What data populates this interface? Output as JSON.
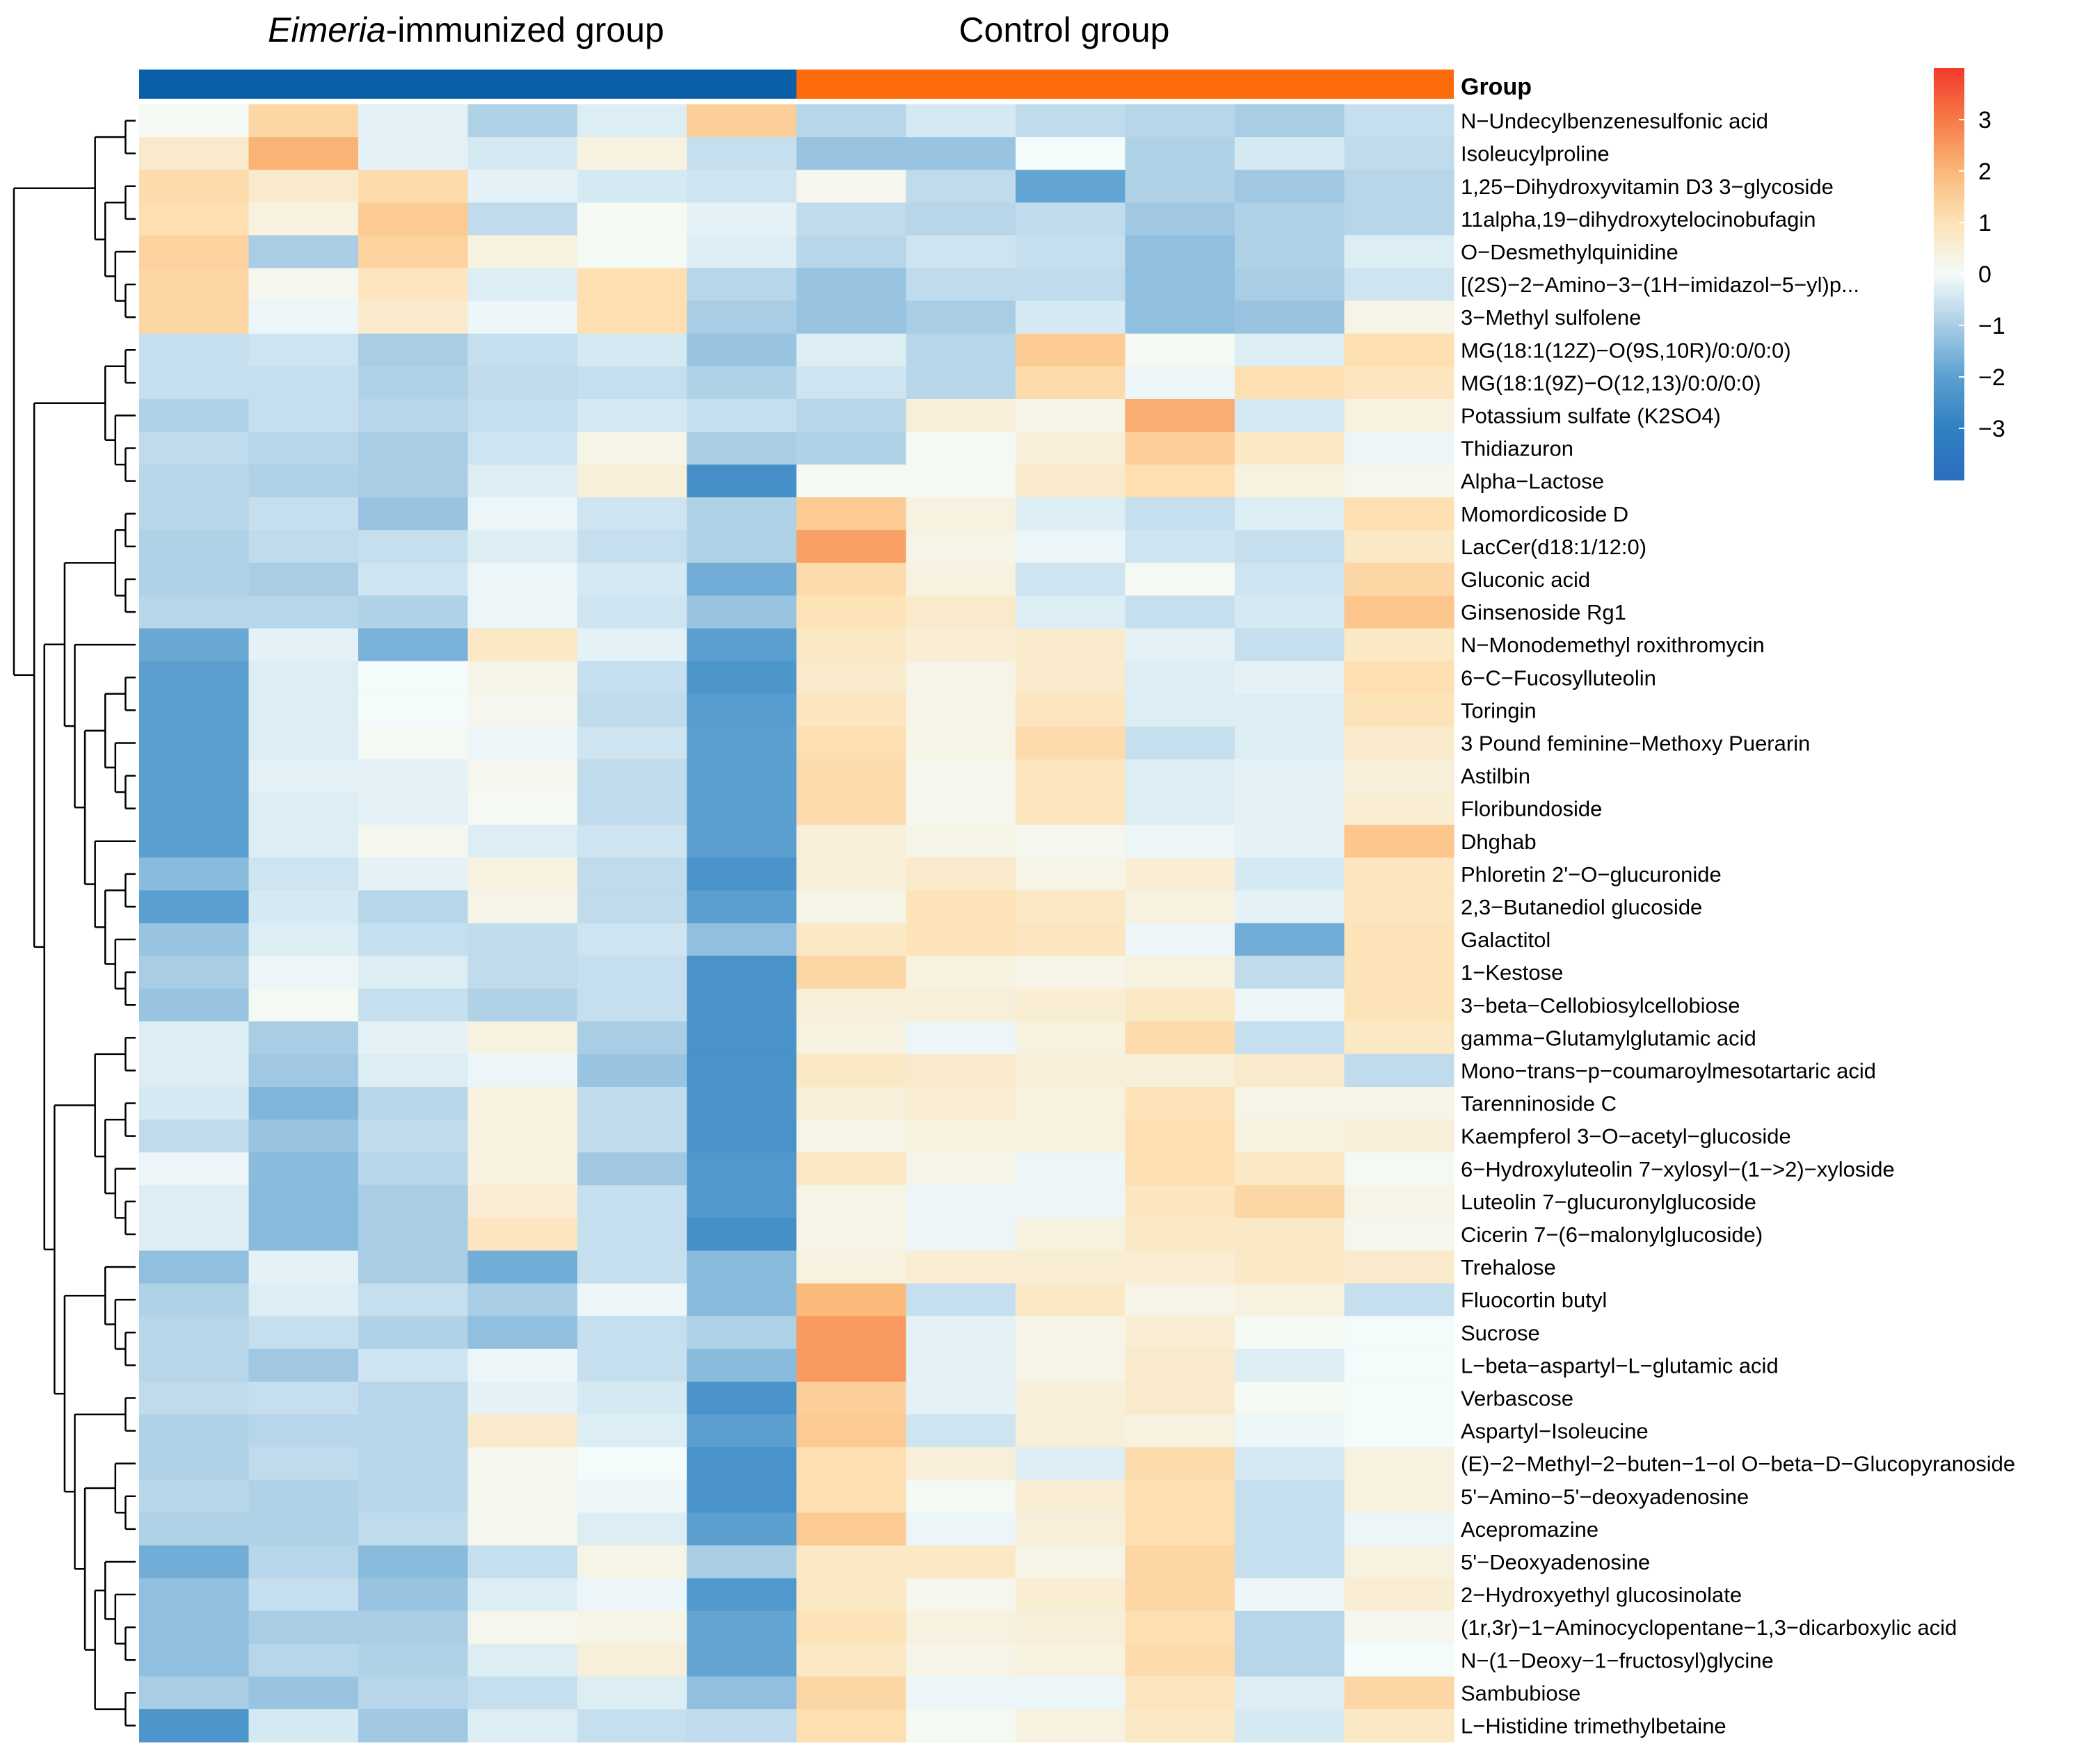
{
  "chart_data": {
    "type": "heatmap",
    "group_labels": [
      "Eimeria",
      "-immunized group",
      "Control group"
    ],
    "group_legend_label": "Group",
    "group_colors": [
      "#0a5fa8",
      "#fd6a0b"
    ],
    "columns_per_group": 6,
    "colorbar": {
      "min": -4,
      "max": 4,
      "ticks": [
        "3",
        "2",
        "1",
        "0",
        "−1",
        "−2",
        "−3"
      ],
      "tick_values": [
        3,
        2,
        1,
        0,
        -1,
        -2,
        -3
      ]
    },
    "rows": [
      {
        "label": "N−Undecylbenzenesulfonic acid",
        "values": [
          0.1,
          1.3,
          -0.2,
          -0.9,
          -0.3,
          1.5,
          -0.8,
          -0.4,
          -0.7,
          -0.8,
          -1.0,
          -0.6
        ]
      },
      {
        "label": "Isoleucylproline",
        "values": [
          0.7,
          2.1,
          -0.2,
          -0.4,
          0.4,
          -0.6,
          -1.2,
          -1.2,
          0.0,
          -0.9,
          -0.4,
          -0.7
        ]
      },
      {
        "label": "1,25−Dihydroxyvitamin D3 3−glycoside",
        "values": [
          1.2,
          0.7,
          1.2,
          -0.2,
          -0.4,
          -0.5,
          0.2,
          -0.7,
          -1.9,
          -0.9,
          -1.1,
          -0.8
        ]
      },
      {
        "label": "11alpha,19−dihydroxytelocinobufagin",
        "values": [
          1.1,
          0.4,
          1.6,
          -0.7,
          0.1,
          -0.2,
          -0.7,
          -0.8,
          -0.7,
          -1.1,
          -0.9,
          -0.8
        ]
      },
      {
        "label": "O−Desmethylquinidine",
        "values": [
          1.4,
          -1.0,
          1.4,
          0.4,
          0.1,
          -0.3,
          -0.8,
          -0.5,
          -0.6,
          -1.3,
          -0.9,
          -0.3
        ]
      },
      {
        "label": "[(2S)−2−Amino−3−(1H−imidazol−5−yl)p...",
        "values": [
          1.3,
          0.2,
          0.9,
          -0.3,
          1.1,
          -0.8,
          -1.2,
          -0.7,
          -0.7,
          -1.3,
          -1.0,
          -0.5
        ]
      },
      {
        "label": "3−Methyl sulfolene",
        "values": [
          1.3,
          -0.1,
          0.7,
          -0.1,
          1.1,
          -1.0,
          -1.2,
          -1.0,
          -0.4,
          -1.3,
          -1.2,
          0.3
        ]
      },
      {
        "label": "MG(18:1(12Z)−O(9S,10R)/0:0/0:0)",
        "values": [
          -0.6,
          -0.5,
          -1.0,
          -0.6,
          -0.4,
          -1.2,
          -0.3,
          -0.8,
          1.6,
          0.1,
          -0.3,
          1.1
        ]
      },
      {
        "label": "MG(18:1(9Z)−O(12,13)/0:0/0:0)",
        "values": [
          -0.6,
          -0.6,
          -0.9,
          -0.7,
          -0.6,
          -0.9,
          -0.5,
          -0.8,
          1.2,
          -0.1,
          1.1,
          0.9
        ]
      },
      {
        "label": "Potassium sulfate (K2SO4)",
        "values": [
          -0.9,
          -0.6,
          -0.8,
          -0.6,
          -0.4,
          -0.6,
          -0.8,
          0.5,
          0.3,
          2.2,
          -0.4,
          0.4
        ]
      },
      {
        "label": "Thidiazuron",
        "values": [
          -0.7,
          -0.8,
          -1.0,
          -0.5,
          0.3,
          -1.0,
          -0.9,
          0.1,
          0.5,
          1.5,
          0.8,
          -0.1
        ]
      },
      {
        "label": "Alpha−Lactose",
        "values": [
          -0.8,
          -0.9,
          -1.0,
          -0.3,
          0.5,
          -2.5,
          0.1,
          0.1,
          0.7,
          1.1,
          0.4,
          0.2
        ]
      },
      {
        "label": "Momordicoside D",
        "values": [
          -0.8,
          -0.6,
          -1.2,
          -0.1,
          -0.5,
          -0.9,
          1.6,
          0.4,
          -0.3,
          -0.6,
          -0.3,
          1.1
        ]
      },
      {
        "label": "LacCer(d18:1/12:0)",
        "values": [
          -0.9,
          -0.7,
          -0.6,
          -0.3,
          -0.6,
          -0.9,
          2.4,
          0.3,
          -0.1,
          -0.5,
          -0.6,
          0.8
        ]
      },
      {
        "label": "Gluconic acid",
        "values": [
          -0.9,
          -1.0,
          -0.5,
          -0.1,
          -0.4,
          -1.7,
          1.2,
          0.4,
          -0.5,
          0.1,
          -0.5,
          1.3
        ]
      },
      {
        "label": "Ginsenoside Rg1",
        "values": [
          -0.8,
          -0.8,
          -0.9,
          -0.1,
          -0.5,
          -1.2,
          1.0,
          0.7,
          -0.3,
          -0.6,
          -0.4,
          1.7
        ]
      },
      {
        "label": "N−Monodemethyl roxithromycin",
        "values": [
          -1.8,
          -0.2,
          -1.6,
          0.8,
          -0.2,
          -2.0,
          0.8,
          0.6,
          0.7,
          -0.2,
          -0.6,
          0.8
        ]
      },
      {
        "label": "6−C−Fucosylluteolin",
        "values": [
          -2.0,
          -0.3,
          0.0,
          0.3,
          -0.6,
          -2.3,
          0.7,
          0.3,
          0.7,
          -0.3,
          -0.2,
          1.1
        ]
      },
      {
        "label": "Toringin",
        "values": [
          -2.0,
          -0.3,
          0.0,
          0.2,
          -0.7,
          -2.1,
          0.9,
          0.3,
          0.9,
          -0.3,
          -0.3,
          1.0
        ]
      },
      {
        "label": "3 Pound feminine−Methoxy Puerarin",
        "values": [
          -2.0,
          -0.3,
          0.1,
          -0.1,
          -0.5,
          -2.0,
          1.1,
          0.3,
          1.2,
          -0.6,
          -0.3,
          0.7
        ]
      },
      {
        "label": "Astilbin",
        "values": [
          -2.0,
          -0.2,
          -0.2,
          0.2,
          -0.7,
          -2.0,
          1.2,
          0.2,
          0.9,
          -0.3,
          -0.2,
          0.5
        ]
      },
      {
        "label": "Floribundoside",
        "values": [
          -2.0,
          -0.3,
          -0.2,
          0.1,
          -0.7,
          -2.0,
          1.2,
          0.2,
          0.9,
          -0.3,
          -0.2,
          0.6
        ]
      },
      {
        "label": "Dhghab",
        "values": [
          -2.0,
          -0.3,
          0.2,
          -0.3,
          -0.5,
          -2.0,
          0.5,
          0.3,
          0.2,
          -0.1,
          -0.2,
          1.7
        ]
      },
      {
        "label": "Phloretin 2'−O−glucuronide",
        "values": [
          -1.4,
          -0.5,
          -0.2,
          0.4,
          -0.7,
          -2.4,
          0.5,
          0.7,
          0.3,
          0.6,
          -0.4,
          0.9
        ]
      },
      {
        "label": "2,3−Butanediol glucoside",
        "values": [
          -2.0,
          -0.4,
          -0.8,
          0.3,
          -0.7,
          -2.0,
          0.3,
          1.0,
          0.8,
          0.4,
          -0.2,
          0.9
        ]
      },
      {
        "label": "Galactitol",
        "values": [
          -1.2,
          -0.3,
          -0.6,
          -0.7,
          -0.5,
          -1.3,
          0.8,
          1.0,
          0.9,
          -0.1,
          -1.7,
          1.0
        ]
      },
      {
        "label": "1−Kestose",
        "values": [
          -1.0,
          -0.1,
          -0.3,
          -0.7,
          -0.6,
          -2.4,
          1.3,
          0.4,
          0.3,
          0.4,
          -0.7,
          1.0
        ]
      },
      {
        "label": "3−beta−Cellobiosylcellobiose",
        "values": [
          -1.2,
          0.1,
          -0.6,
          -0.9,
          -0.6,
          -2.4,
          0.5,
          0.5,
          0.6,
          0.8,
          -0.1,
          1.0
        ]
      },
      {
        "label": "gamma−Glutamylglutamic acid",
        "values": [
          -0.3,
          -1.0,
          -0.2,
          0.4,
          -1.0,
          -2.4,
          0.4,
          -0.1,
          0.4,
          1.2,
          -0.6,
          0.8
        ]
      },
      {
        "label": "Mono−trans−p−coumaroylmesotartaric acid",
        "values": [
          -0.3,
          -1.1,
          -0.3,
          -0.1,
          -1.2,
          -2.4,
          0.8,
          0.7,
          0.5,
          0.5,
          0.7,
          -0.7
        ]
      },
      {
        "label": "Tarenninoside C",
        "values": [
          -0.4,
          -1.5,
          -0.8,
          0.4,
          -0.7,
          -2.4,
          0.5,
          0.6,
          0.4,
          1.0,
          0.3,
          0.3
        ]
      },
      {
        "label": "Kaempferol 3−O−acetyl−glucoside",
        "values": [
          -0.7,
          -1.2,
          -0.7,
          0.4,
          -0.7,
          -2.4,
          0.3,
          0.4,
          0.4,
          1.1,
          0.4,
          0.5
        ]
      },
      {
        "label": "6−Hydroxyluteolin 7−xylosyl−(1−>2)−xyloside",
        "values": [
          -0.1,
          -1.4,
          -0.8,
          0.4,
          -1.1,
          -2.2,
          0.8,
          0.3,
          -0.1,
          1.1,
          0.8,
          0.1
        ]
      },
      {
        "label": "Luteolin 7−glucuronylglucoside",
        "values": [
          -0.3,
          -1.4,
          -1.0,
          0.6,
          -0.6,
          -2.2,
          0.3,
          -0.1,
          -0.1,
          0.9,
          1.3,
          0.3
        ]
      },
      {
        "label": "Cicerin 7−(6−malonylglucoside)",
        "values": [
          -0.3,
          -1.4,
          -1.0,
          0.9,
          -0.6,
          -2.5,
          0.3,
          -0.1,
          0.4,
          0.8,
          0.8,
          0.2
        ]
      },
      {
        "label": "Trehalose",
        "values": [
          -1.3,
          -0.2,
          -1.0,
          -1.7,
          -0.6,
          -1.4,
          0.4,
          0.6,
          0.6,
          0.6,
          0.8,
          0.7
        ]
      },
      {
        "label": "Fluocortin butyl",
        "values": [
          -0.9,
          -0.3,
          -0.6,
          -1.0,
          -0.1,
          -1.4,
          2.0,
          -0.6,
          0.8,
          0.3,
          0.4,
          -0.6
        ]
      },
      {
        "label": "Sucrose",
        "values": [
          -0.8,
          -0.6,
          -0.9,
          -1.3,
          -0.6,
          -0.9,
          2.5,
          -0.2,
          0.3,
          0.6,
          0.1,
          0.0
        ]
      },
      {
        "label": "L−beta−aspartyl−L−glutamic acid",
        "values": [
          -0.8,
          -1.1,
          -0.5,
          -0.1,
          -0.6,
          -1.4,
          2.5,
          -0.2,
          0.3,
          0.7,
          -0.3,
          0.0
        ]
      },
      {
        "label": "Verbascose",
        "values": [
          -0.7,
          -0.6,
          -0.8,
          -0.2,
          -0.4,
          -2.4,
          1.5,
          -0.2,
          0.5,
          0.7,
          0.1,
          0.0
        ]
      },
      {
        "label": "Aspartyl−Isoleucine",
        "values": [
          -0.9,
          -0.8,
          -0.8,
          0.7,
          -0.3,
          -2.0,
          1.6,
          -0.5,
          0.5,
          0.4,
          -0.1,
          0.0
        ]
      },
      {
        "label": "(E)−2−Methyl−2−buten−1−ol O−beta−D−Glucopyranoside",
        "values": [
          -0.9,
          -0.7,
          -0.8,
          0.2,
          0.0,
          -2.4,
          1.1,
          0.5,
          -0.3,
          1.2,
          -0.4,
          0.4
        ]
      },
      {
        "label": "5'−Amino−5'−deoxyadenosine",
        "values": [
          -0.8,
          -0.9,
          -0.8,
          0.2,
          -0.1,
          -2.4,
          1.1,
          0.1,
          0.6,
          1.1,
          -0.6,
          0.4
        ]
      },
      {
        "label": "Acepromazine",
        "values": [
          -0.9,
          -0.9,
          -0.7,
          0.2,
          -0.3,
          -2.0,
          1.6,
          -0.1,
          0.5,
          1.1,
          -0.6,
          -0.1
        ]
      },
      {
        "label": "5'−Deoxyadenosine",
        "values": [
          -1.7,
          -0.8,
          -1.4,
          -0.6,
          0.3,
          -1.0,
          0.8,
          0.8,
          0.3,
          1.3,
          -0.6,
          0.4
        ]
      },
      {
        "label": "2−Hydroxyethyl glucosinolate",
        "values": [
          -1.3,
          -0.6,
          -1.2,
          -0.3,
          -0.1,
          -2.2,
          0.8,
          0.2,
          0.6,
          1.3,
          -0.1,
          0.6
        ]
      },
      {
        "label": "(1r,3r)−1−Aminocyclopentane−1,3−dicarboxylic acid",
        "values": [
          -1.3,
          -1.0,
          -1.0,
          0.2,
          0.3,
          -1.9,
          1.0,
          0.4,
          0.5,
          1.1,
          -0.8,
          0.2
        ]
      },
      {
        "label": "N−(1−Deoxy−1−fructosyl)glycine",
        "values": [
          -1.3,
          -0.8,
          -0.9,
          -0.3,
          0.5,
          -1.9,
          0.8,
          0.3,
          0.4,
          1.2,
          -0.8,
          0.0
        ]
      },
      {
        "label": "Sambubiose",
        "values": [
          -1.0,
          -1.2,
          -0.8,
          -0.6,
          -0.3,
          -1.3,
          1.3,
          -0.1,
          -0.1,
          0.9,
          -0.3,
          1.3
        ]
      },
      {
        "label": "L−Histidine trimethylbetaine",
        "values": [
          -2.3,
          -0.4,
          -1.1,
          -0.3,
          -0.6,
          -0.7,
          1.1,
          0.1,
          0.4,
          0.8,
          -0.4,
          0.8
        ]
      }
    ]
  }
}
